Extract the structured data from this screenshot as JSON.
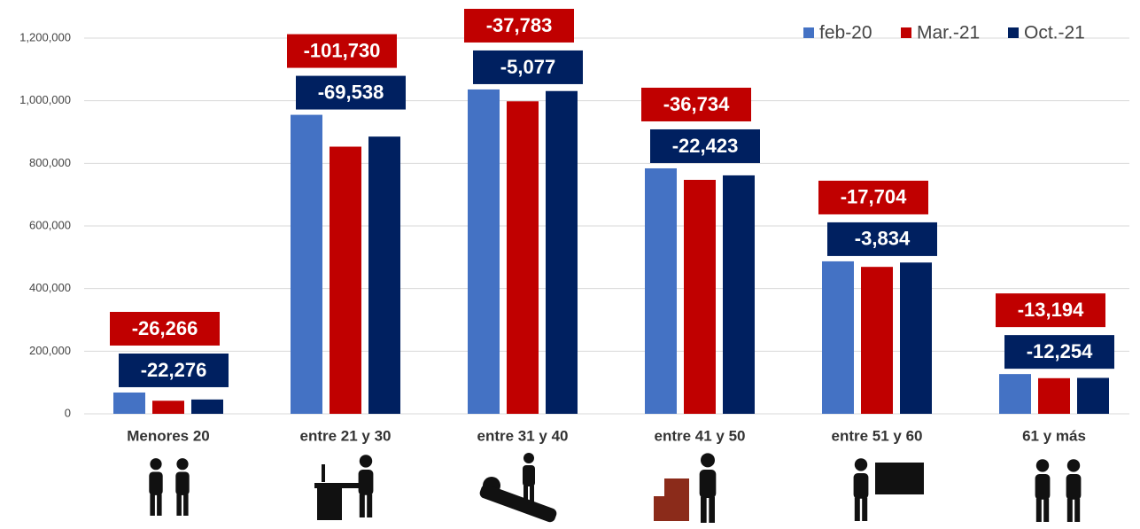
{
  "chart_data": {
    "type": "bar",
    "categories": [
      "Menores 20",
      "entre 21 y 30",
      "entre 31 y 40",
      "entre 41 y 50",
      "entre 51 y 60",
      "61 y más"
    ],
    "series": [
      {
        "name": "feb-20",
        "color": "#4472c4",
        "values": [
          68000,
          955000,
          1036000,
          784000,
          487000,
          127000
        ]
      },
      {
        "name": "Mar.-21",
        "color": "#c00000",
        "values": [
          41734,
          853270,
          998217,
          747266,
          469296,
          113806
        ],
        "annotations": [
          "-26,266",
          "-101,730",
          "-37,783",
          "-36,734",
          "-17,704",
          "-13,194"
        ]
      },
      {
        "name": "Oct.-21",
        "color": "#002060",
        "values": [
          45724,
          885462,
          1030923,
          761577,
          483166,
          114746
        ],
        "annotations": [
          "-22,276",
          "-69,538",
          "-5,077",
          "-22,423",
          "-3,834",
          "-12,254"
        ]
      }
    ],
    "ylim": [
      0,
      1200000
    ],
    "yticks": [
      0,
      {
        "value": 200000,
        "label": "200,000"
      },
      {
        "value": 400000,
        "label": "400,000"
      },
      {
        "value": 600000,
        "label": "600,000"
      },
      {
        "value": 800000,
        "label": "800,000"
      },
      {
        "value": 1000000,
        "label": "1,000,000"
      },
      {
        "value": 1200000,
        "label": "1,200,000"
      }
    ],
    "grid": true,
    "legend": "top-right"
  }
}
